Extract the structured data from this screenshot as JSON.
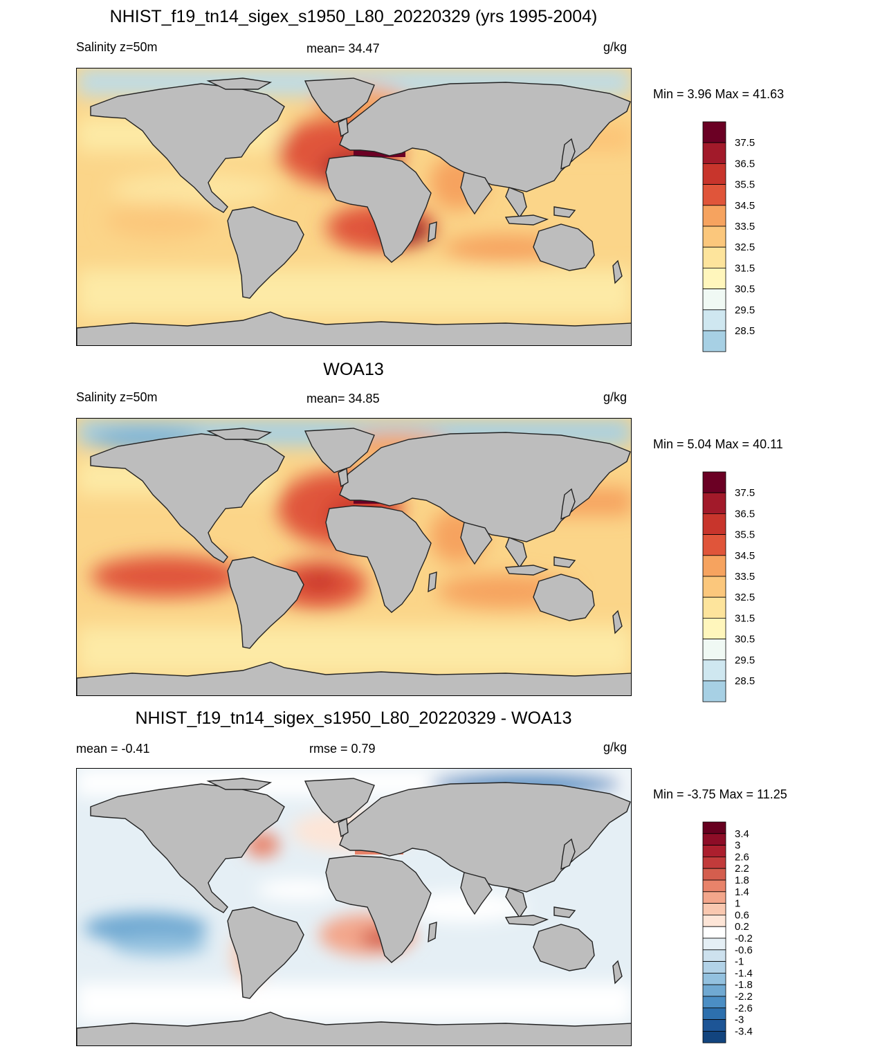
{
  "panels": [
    {
      "title": "NHIST_f19_tn14_sigex_s1950_L80_20220329 (yrs 1995-2004)",
      "left_label": "Salinity z=50m",
      "center_label": "mean=  34.47",
      "units": "g/kg",
      "minmax": "Min =   3.96 Max =  41.63",
      "colorbar_labels": [
        "37.5",
        "36.5",
        "35.5",
        "34.5",
        "33.5",
        "32.5",
        "31.5",
        "30.5",
        "29.5",
        "28.5"
      ]
    },
    {
      "title": "WOA13",
      "left_label": "Salinity z=50m",
      "center_label": "mean=  34.85",
      "units": "g/kg",
      "minmax": "Min =   5.04 Max =  40.11",
      "colorbar_labels": [
        "37.5",
        "36.5",
        "35.5",
        "34.5",
        "33.5",
        "32.5",
        "31.5",
        "30.5",
        "29.5",
        "28.5"
      ]
    },
    {
      "title": "NHIST_f19_tn14_sigex_s1950_L80_20220329 - WOA13",
      "left_label": "mean =  -0.41",
      "center_label": "rmse =   0.79",
      "units": "g/kg",
      "minmax": "Min =  -3.75 Max =  11.25",
      "colorbar_labels": [
        "3.4",
        "3",
        "2.6",
        "2.2",
        "1.8",
        "1.4",
        "1",
        "0.6",
        "0.2",
        "-0.2",
        "-0.6",
        "-1",
        "-1.4",
        "-1.8",
        "-2.2",
        "-2.6",
        "-3",
        "-3.4"
      ]
    }
  ],
  "colors": {
    "land": "#bdbdbd",
    "salinity_scale": [
      "#6b0024",
      "#a21a2a",
      "#c8352c",
      "#e0553a",
      "#ef7e4d",
      "#f6a35f",
      "#fbc77c",
      "#fde49c",
      "#fff6bc",
      "#f0f9f4",
      "#cfe7f0",
      "#a7d0e4",
      "#7bb2d6",
      "#5088c1",
      "#3c5ca7",
      "#2d3a8a",
      "#262a5e"
    ],
    "diff_scale": [
      "#67001f",
      "#8e0d27",
      "#ac1f2e",
      "#c23b3b",
      "#d45e4e",
      "#e8836a",
      "#f3a68b",
      "#f9c8b0",
      "#fde5d7",
      "#ffffff",
      "#e5eff5",
      "#cde1ee",
      "#b2d2e7",
      "#93c1df",
      "#70a9d2",
      "#4b8ec4",
      "#2d70ae",
      "#1d5596",
      "#12447e",
      "#0b2f5f"
    ]
  }
}
